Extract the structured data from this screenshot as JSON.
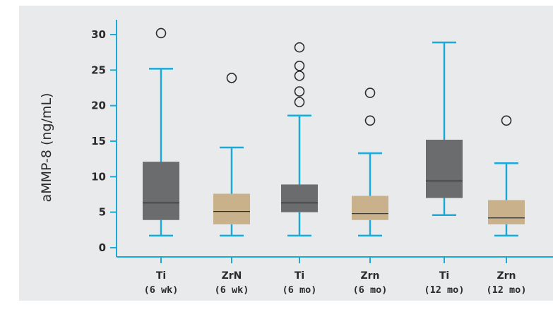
{
  "chart_data": {
    "type": "box",
    "ylabel": "aMMP-8 (ng/mL)",
    "ylim": [
      0,
      30
    ],
    "yticks": [
      0,
      5,
      10,
      15,
      20,
      25,
      30
    ],
    "grid": false,
    "colors": {
      "axis": "#1aaad9",
      "dark_box": "#6b6c6e",
      "tan_box": "#c9b28b",
      "outlier": "#2b2b2b"
    },
    "categories": [
      {
        "name": "Ti",
        "sub": "(6 wk)",
        "box_color": "dark",
        "whisker_low": 1.7,
        "q1": 3.9,
        "median": 6.3,
        "q3": 12.1,
        "whisker_high": 25.2,
        "outliers": [
          30.2
        ]
      },
      {
        "name": "ZrN",
        "sub": "(6 wk)",
        "box_color": "tan",
        "whisker_low": 1.7,
        "q1": 3.3,
        "median": 5.1,
        "q3": 7.6,
        "whisker_high": 14.1,
        "outliers": [
          23.9
        ]
      },
      {
        "name": "Ti",
        "sub": "(6 mo)",
        "box_color": "dark",
        "whisker_low": 1.7,
        "q1": 5.0,
        "median": 6.3,
        "q3": 8.9,
        "whisker_high": 18.6,
        "outliers": [
          20.5,
          22.0,
          24.2,
          25.6,
          28.2
        ]
      },
      {
        "name": "Zrn",
        "sub": "(6 mo)",
        "box_color": "tan",
        "whisker_low": 1.7,
        "q1": 3.9,
        "median": 4.8,
        "q3": 7.3,
        "whisker_high": 13.3,
        "outliers": [
          17.9,
          21.8
        ]
      },
      {
        "name": "Ti",
        "sub": "(12 mo)",
        "box_color": "dark",
        "whisker_low": 4.6,
        "q1": 7.0,
        "median": 9.4,
        "q3": 15.2,
        "whisker_high": 28.9,
        "outliers": []
      },
      {
        "name": "Zrn",
        "sub": "(12 mo)",
        "box_color": "tan",
        "whisker_low": 1.7,
        "q1": 3.3,
        "median": 4.2,
        "q3": 6.7,
        "whisker_high": 11.9,
        "outliers": [
          17.9
        ]
      }
    ]
  }
}
